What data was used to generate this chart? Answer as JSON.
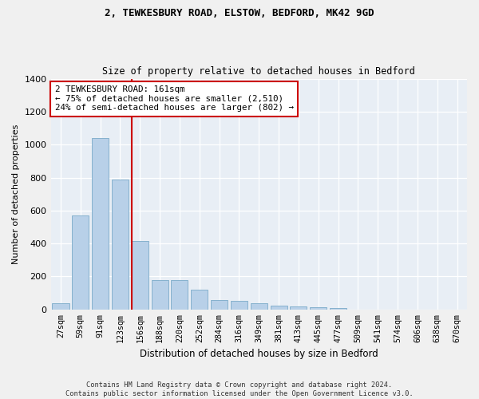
{
  "title1": "2, TEWKESBURY ROAD, ELSTOW, BEDFORD, MK42 9GD",
  "title2": "Size of property relative to detached houses in Bedford",
  "xlabel": "Distribution of detached houses by size in Bedford",
  "ylabel": "Number of detached properties",
  "categories": [
    "27sqm",
    "59sqm",
    "91sqm",
    "123sqm",
    "156sqm",
    "188sqm",
    "220sqm",
    "252sqm",
    "284sqm",
    "316sqm",
    "349sqm",
    "381sqm",
    "413sqm",
    "445sqm",
    "477sqm",
    "509sqm",
    "541sqm",
    "574sqm",
    "606sqm",
    "638sqm",
    "670sqm"
  ],
  "values": [
    40,
    570,
    1040,
    790,
    415,
    180,
    180,
    120,
    55,
    50,
    40,
    22,
    20,
    15,
    10,
    0,
    0,
    0,
    0,
    0,
    0
  ],
  "bar_color": "#b8d0e8",
  "bar_edge_color": "#7aaac8",
  "highlight_color": "#cc0000",
  "vline_index": 4,
  "annotation_line1": "2 TEWKESBURY ROAD: 161sqm",
  "annotation_line2": "← 75% of detached houses are smaller (2,510)",
  "annotation_line3": "24% of semi-detached houses are larger (802) →",
  "annotation_box_color": "#cc0000",
  "ylim": [
    0,
    1400
  ],
  "yticks": [
    0,
    200,
    400,
    600,
    800,
    1000,
    1200,
    1400
  ],
  "background_color": "#e8eef5",
  "grid_color": "#ffffff",
  "fig_color": "#f0f0f0",
  "footer_text": "Contains HM Land Registry data © Crown copyright and database right 2024.\nContains public sector information licensed under the Open Government Licence v3.0."
}
